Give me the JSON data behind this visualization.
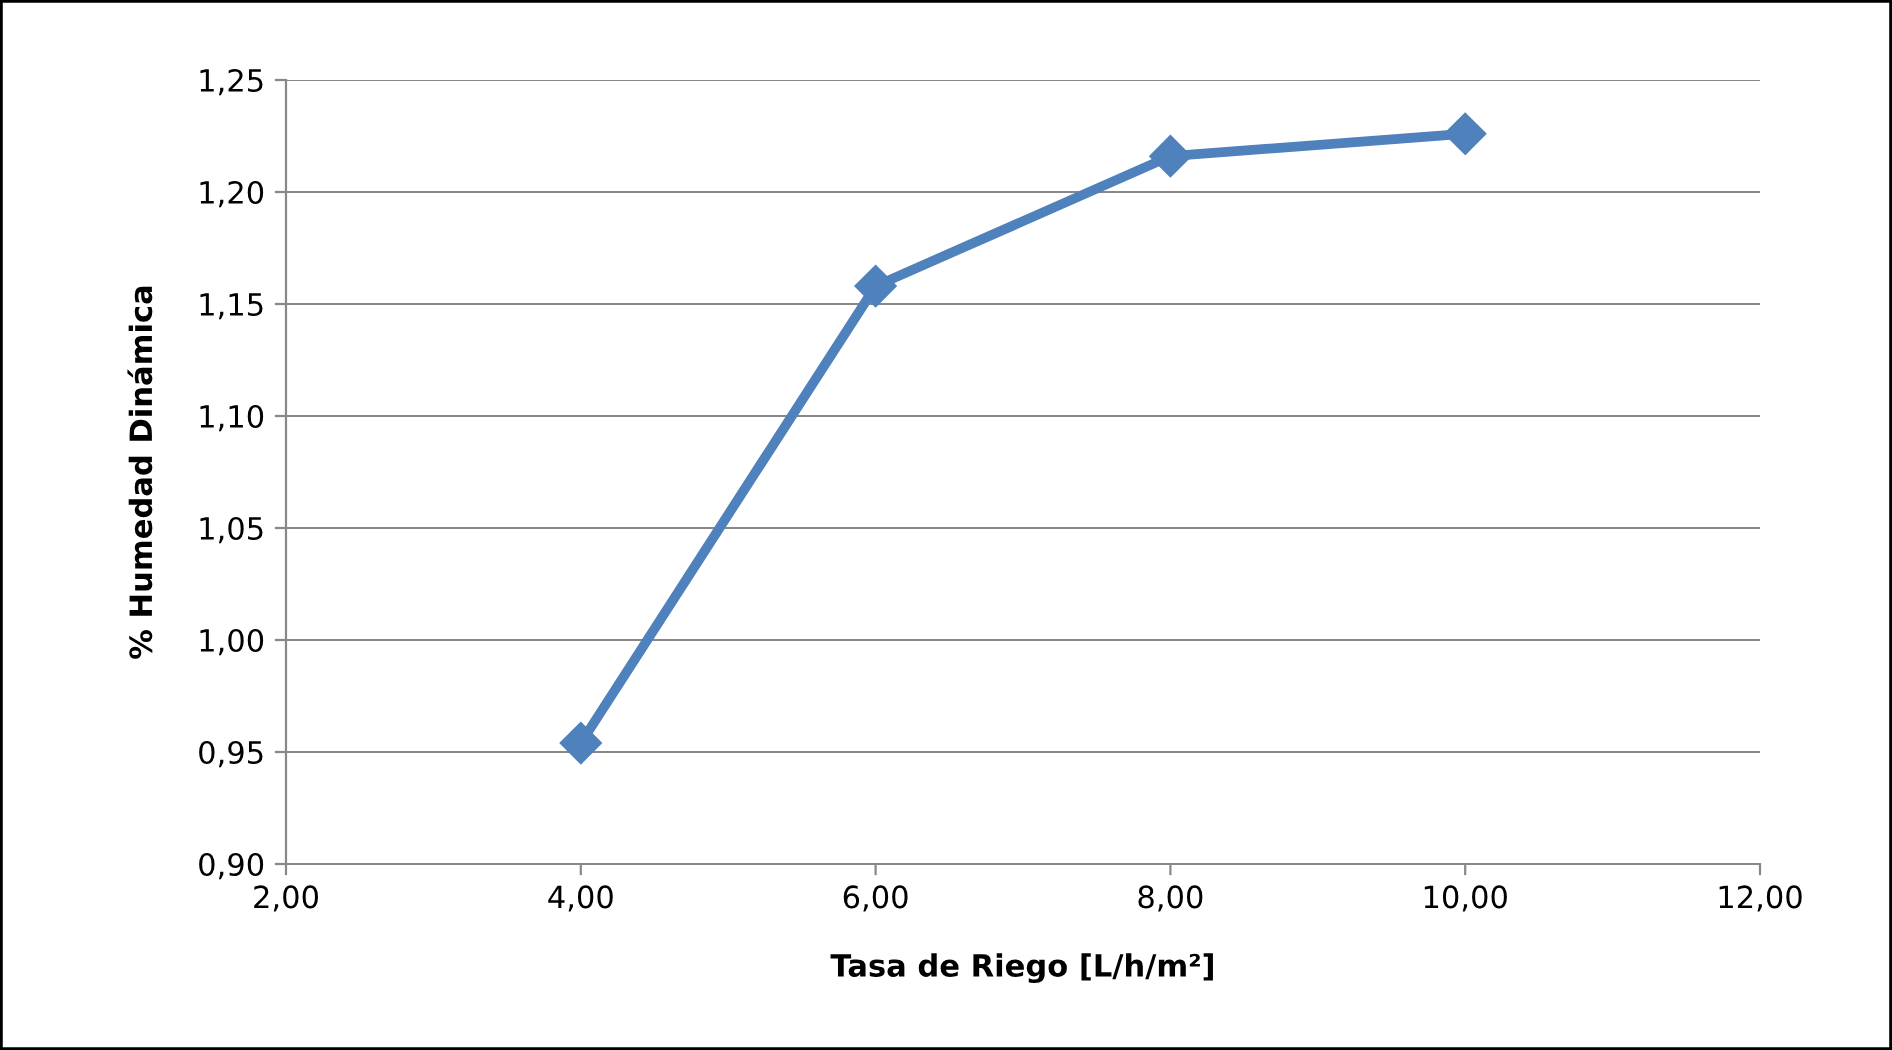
{
  "chart_data": {
    "type": "line",
    "xlabel": "Tasa de Riego [L/h/m²]",
    "ylabel": "% Humedad Dinámica",
    "x": [
      4,
      6,
      8,
      10
    ],
    "series": [
      {
        "color": "#4f81bd",
        "values": [
          0.954,
          1.158,
          1.216,
          1.226
        ]
      }
    ],
    "xlim": [
      2,
      12
    ],
    "xticks": [
      {
        "value": 2,
        "label": "2,00"
      },
      {
        "value": 4,
        "label": "4,00"
      },
      {
        "value": 6,
        "label": "6,00"
      },
      {
        "value": 8,
        "label": "8,00"
      },
      {
        "value": 10,
        "label": "10,00"
      },
      {
        "value": 12,
        "label": "12,00"
      }
    ],
    "ylim": [
      0.9,
      1.25
    ],
    "yticks": [
      {
        "value": 0.9,
        "label": "0,90"
      },
      {
        "value": 0.95,
        "label": "0,95"
      },
      {
        "value": 1.0,
        "label": "1,00"
      },
      {
        "value": 1.05,
        "label": "1,05"
      },
      {
        "value": 1.1,
        "label": "1,10"
      },
      {
        "value": 1.15,
        "label": "1,15"
      },
      {
        "value": 1.2,
        "label": "1,20"
      },
      {
        "value": 1.25,
        "label": "1,25"
      }
    ],
    "grid": "y",
    "marker": "diamond",
    "line_style": "solid"
  }
}
